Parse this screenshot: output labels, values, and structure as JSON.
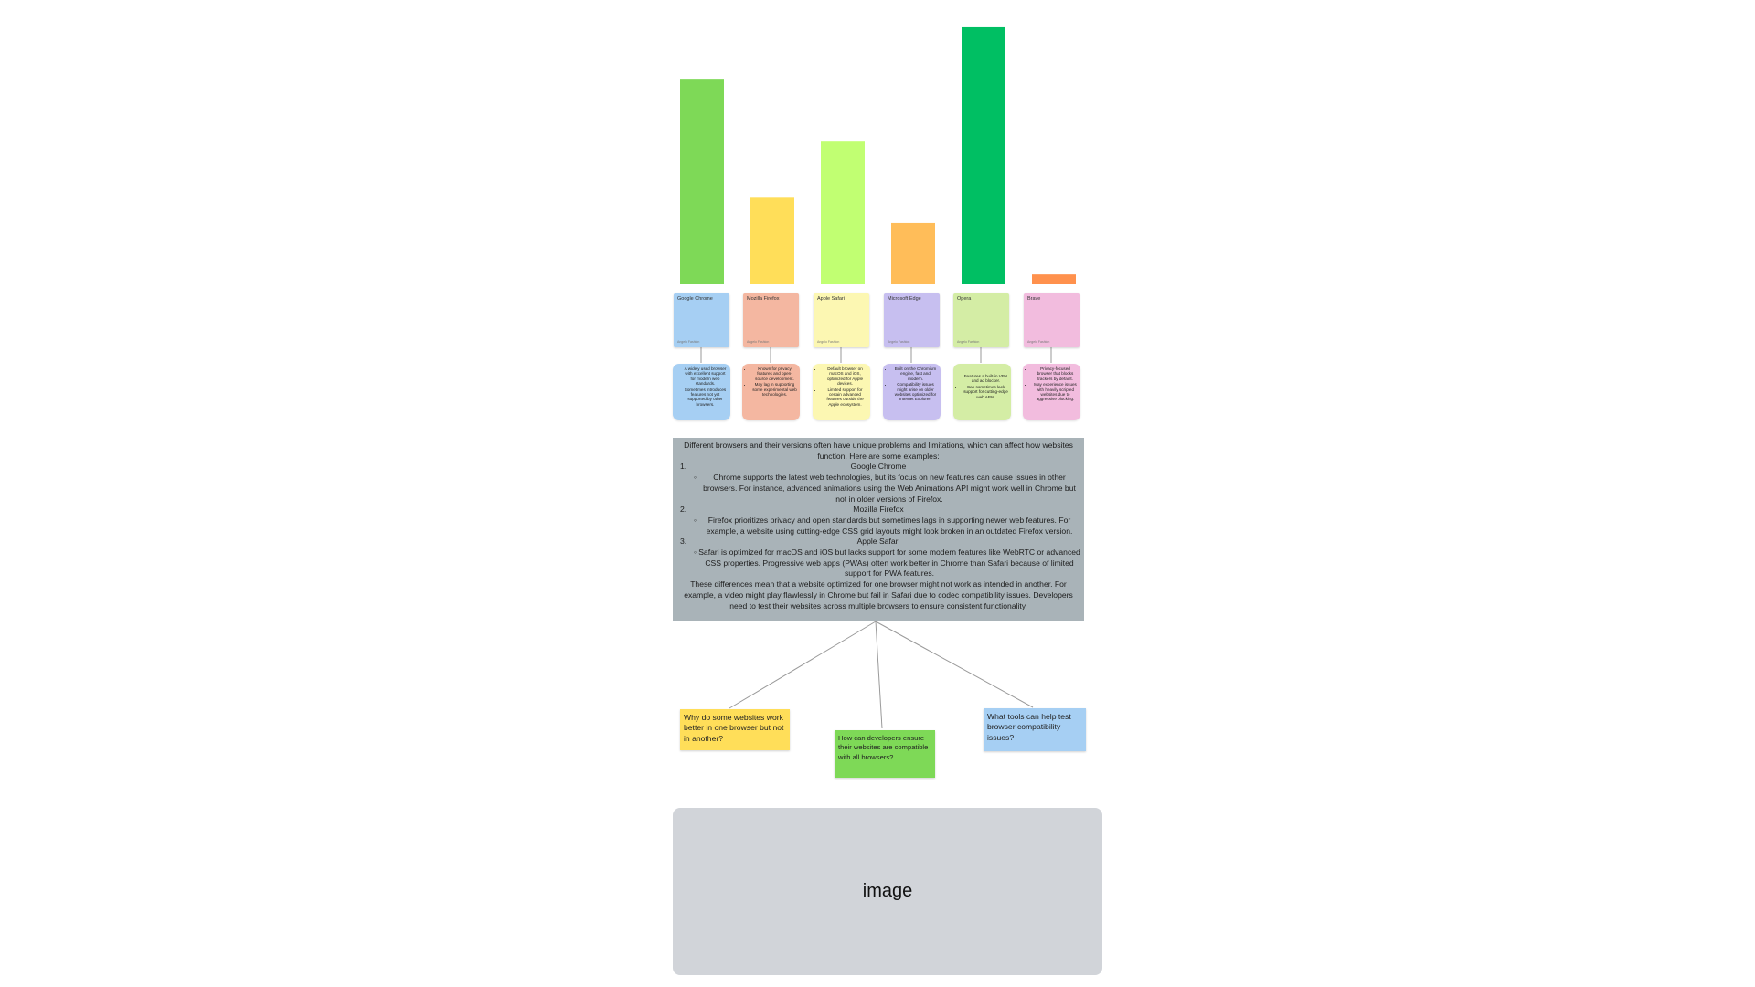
{
  "chart_data": {
    "type": "bar",
    "categories": [
      "Google Chrome",
      "Mozilla Firefox",
      "Apple Safari",
      "Microsoft Edge",
      "Opera",
      "Brave"
    ],
    "values": [
      228,
      96,
      159,
      68,
      286,
      11
    ],
    "colors": [
      "#7ed957",
      "#ffde59",
      "#c1ff72",
      "#ffbd59",
      "#00bf63",
      "#ff914d"
    ],
    "title": "",
    "xlabel": "",
    "ylabel": "",
    "ylim": [
      0,
      290
    ],
    "grid": false
  },
  "stickies": [
    {
      "title": "Google Chrome",
      "author": "Angelo Fashion",
      "color": "#a6cff3"
    },
    {
      "title": "Mozilla Firefox",
      "author": "Angelo Fashion",
      "color": "#f4b7a1"
    },
    {
      "title": "Apple Safari",
      "author": "Angelo Fashion",
      "color": "#fcf7b2"
    },
    {
      "title": "Microsoft Edge",
      "author": "Angelo Fashion",
      "color": "#c7bff0"
    },
    {
      "title": "Opera",
      "author": "Angelo Fashion",
      "color": "#d4eda5"
    },
    {
      "title": "Brave",
      "author": "Angelo Fashion",
      "color": "#f2bcde"
    }
  ],
  "descriptions": [
    {
      "color": "#a6cff3",
      "points": [
        "A widely used browser with excellent support for modern web standards.",
        "Sometimes introduces features not yet supported by other browsers."
      ]
    },
    {
      "color": "#f4b7a1",
      "points": [
        "Known for privacy features and open-source development.",
        "May lag in supporting some experimental web technologies."
      ]
    },
    {
      "color": "#fcf7b2",
      "points": [
        "Default browser on macOS and iOS, optimized for Apple devices.",
        "Limited support for certain advanced features outside the Apple ecosystem."
      ]
    },
    {
      "color": "#c7bff0",
      "points": [
        "Built on the Chromium engine, fast and modern.",
        "Compatibility issues might arise on older websites optimized for Internet Explorer."
      ]
    },
    {
      "color": "#d4eda5",
      "points": [
        "Features a built-in VPN and ad blocker.",
        "Can sometimes lack support for cutting-edge web APIs."
      ]
    },
    {
      "color": "#f2bcde",
      "points": [
        "Privacy-focused browser that blocks trackers by default.",
        "May experience issues with heavily scripted websites due to aggressive blocking."
      ]
    }
  ],
  "main_text": {
    "intro": "Different browsers and their versions often have unique problems and limitations, which can affect how websites function. Here are some examples:",
    "items": [
      {
        "num": "1.",
        "title": "Google Chrome",
        "detail": "Chrome supports the latest web technologies, but its focus on new features can cause issues in other browsers. For instance, advanced animations using the Web Animations API might work well in Chrome but not in older versions of Firefox."
      },
      {
        "num": "2.",
        "title": "Mozilla Firefox",
        "detail": "Firefox prioritizes privacy and open standards but sometimes lags in supporting newer web features. For example, a website using cutting-edge CSS grid layouts might look broken in an outdated Firefox version."
      },
      {
        "num": "3.",
        "title": "Apple Safari",
        "detail": "Safari is optimized for macOS and iOS but lacks support for some modern features like WebRTC or advanced CSS properties. Progressive web apps (PWAs) often work better in Chrome than Safari because of limited support for PWA features."
      }
    ],
    "outro": "These differences mean that a website optimized for one browser might not work as intended in another. For example, a video might play flawlessly in Chrome but fail in Safari due to codec compatibility issues. Developers need to test their websites across multiple browsers to ensure consistent functionality."
  },
  "questions": [
    {
      "text": "Why do some websites work better in one browser but not in another?",
      "color": "#ffde59"
    },
    {
      "text": "How can developers ensure their websites are compatible with all browsers?",
      "color": "#7ed957"
    },
    {
      "text": "What tools can help test browser compatibility issues?",
      "color": "#a6cff3"
    }
  ],
  "image_placeholder": {
    "label": "image"
  }
}
